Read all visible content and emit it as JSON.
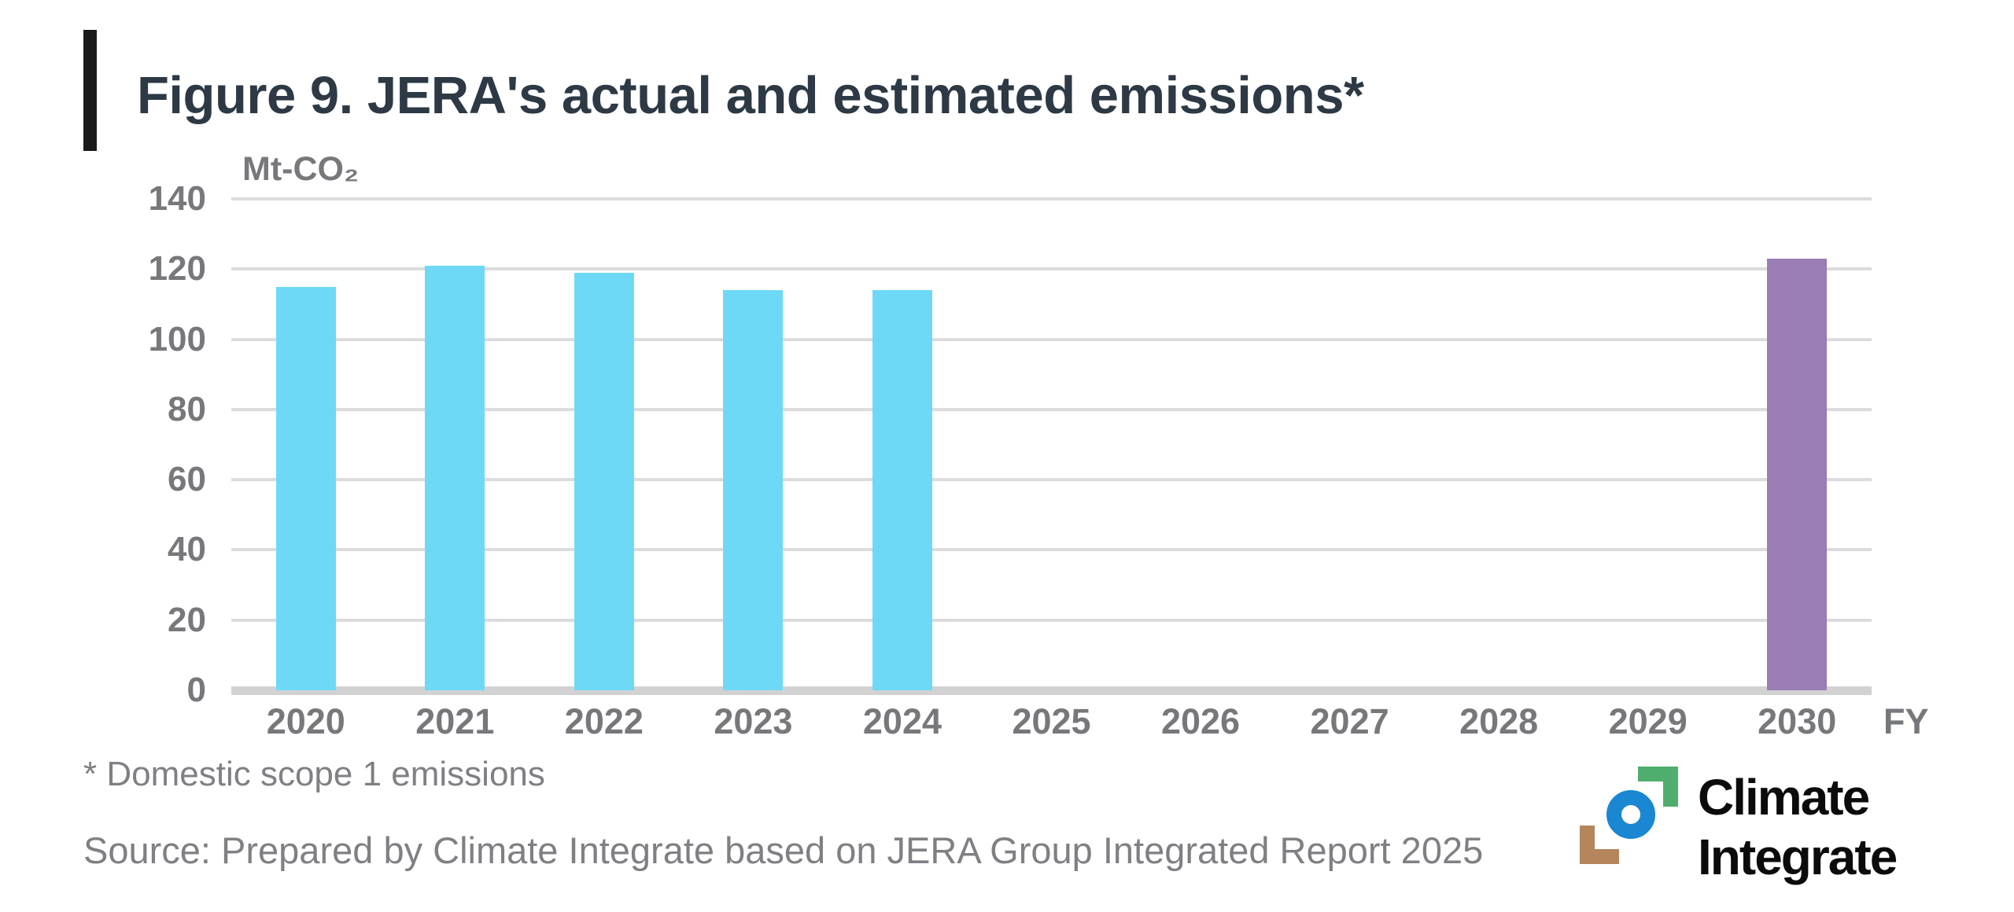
{
  "figure": {
    "title": "Figure 9. JERA's actual and estimated emissions*",
    "footnote": "* Domestic scope 1 emissions",
    "source": "Source: Prepared by Climate Integrate based on JERA Group Integrated Report 2025"
  },
  "chart": {
    "unit_label": "Mt-CO₂",
    "x_axis_suffix": "FY",
    "y_ticks": [
      140,
      120,
      100,
      80,
      60,
      40,
      20,
      0
    ],
    "colors": {
      "actual_bar": "#6ed9f6",
      "estimated_bar": "#9a7db4",
      "gridline": "#dcdcdc",
      "axis_line": "#d2d2d2",
      "tick_text": "#77787b",
      "title_text": "#2d3944"
    }
  },
  "chart_data": {
    "type": "bar",
    "title": "Figure 9. JERA's actual and estimated emissions*",
    "categories": [
      "2020",
      "2021",
      "2022",
      "2023",
      "2024",
      "2025",
      "2026",
      "2027",
      "2028",
      "2029",
      "2030"
    ],
    "series": [
      {
        "name": "actual",
        "color": "#6ed9f6",
        "values": [
          115,
          121,
          119,
          114,
          114,
          null,
          null,
          null,
          null,
          null,
          null
        ]
      },
      {
        "name": "estimated",
        "color": "#9a7db4",
        "values": [
          null,
          null,
          null,
          null,
          null,
          null,
          null,
          null,
          null,
          null,
          123
        ]
      }
    ],
    "xlabel": "FY",
    "ylabel": "Mt-CO₂",
    "ylim": [
      0,
      140
    ],
    "y_tick_step": 20,
    "grid": true,
    "legend": false
  },
  "logo": {
    "name": "Climate Integrate",
    "line1": "Climate",
    "line2": "Integrate",
    "colors": {
      "green": "#4fae6d",
      "blue": "#1987d1",
      "brown": "#b5855c",
      "text": "#0b0b0b"
    }
  }
}
